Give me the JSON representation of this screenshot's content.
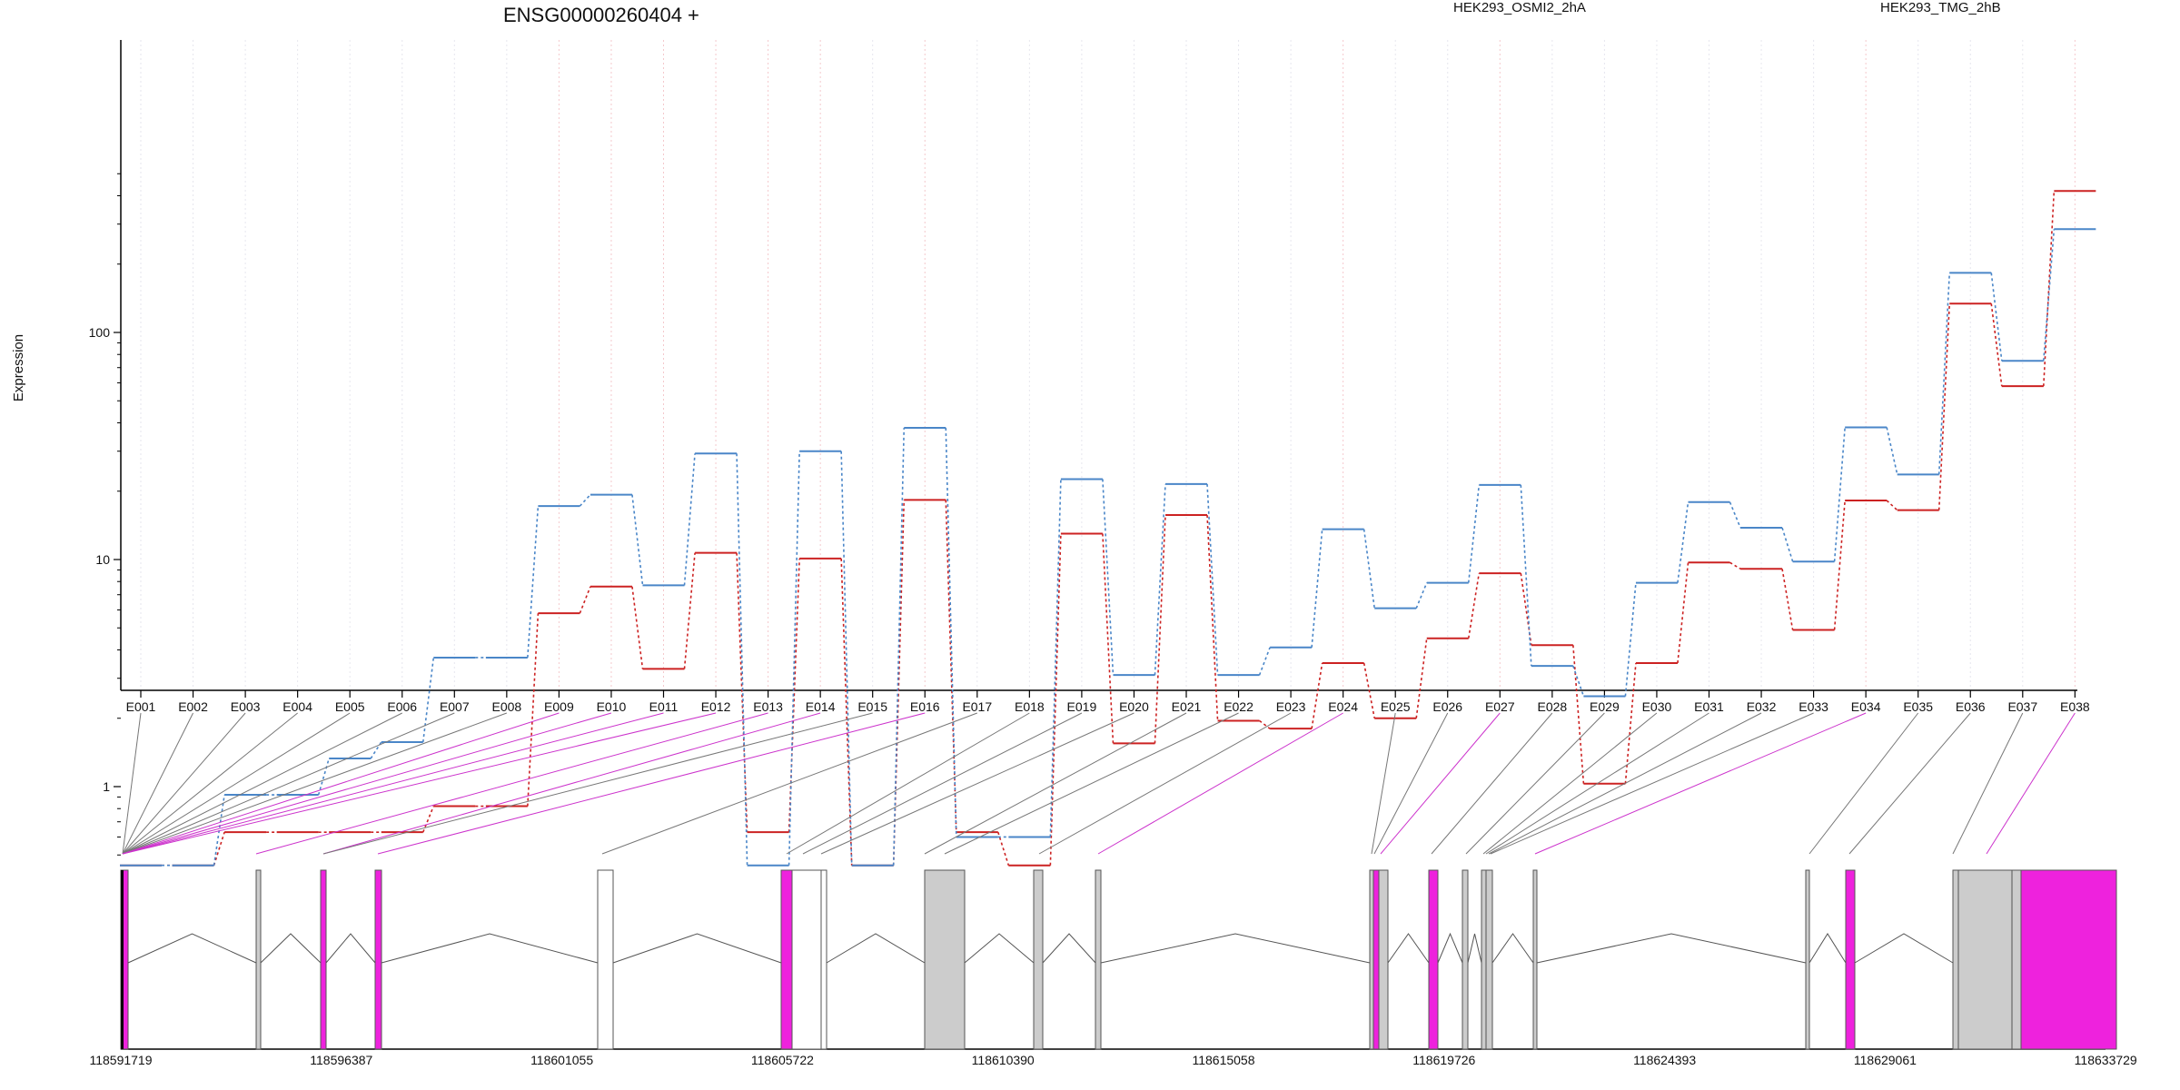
{
  "chart_data": {
    "type": "line",
    "title": "ENSG00000260404 +",
    "ylabel": "Expression",
    "xlabel": "",
    "y_scale": "log",
    "ylim": [
      0.45,
      550
    ],
    "y_ticks": [
      {
        "value": 1,
        "label": "1"
      },
      {
        "value": 10,
        "label": "10"
      },
      {
        "value": 100,
        "label": "100"
      }
    ],
    "grid": "vertical dotted lines at exon positions",
    "categories": [
      "E001",
      "E002",
      "E003",
      "E004",
      "E005",
      "E006",
      "E007",
      "E008",
      "E009",
      "E010",
      "E011",
      "E012",
      "E013",
      "E014",
      "E015",
      "E016",
      "E017",
      "E018",
      "E019",
      "E020",
      "E021",
      "E022",
      "E023",
      "E024",
      "E025",
      "E026",
      "E027",
      "E028",
      "E029",
      "E030",
      "E031",
      "E032",
      "E033",
      "E034",
      "E035",
      "E036",
      "E037",
      "E038"
    ],
    "series": [
      {
        "name": "HEK293_OSMI2_2hA",
        "color": "#cc2222",
        "values": [
          0.45,
          0.45,
          0.63,
          0.63,
          0.63,
          0.63,
          0.82,
          0.82,
          5.8,
          7.6,
          3.3,
          10.7,
          0.63,
          10.1,
          0.45,
          18.3,
          0.63,
          0.45,
          13.0,
          1.55,
          15.7,
          1.95,
          1.8,
          3.5,
          2.0,
          4.5,
          8.7,
          4.2,
          1.03,
          3.5,
          9.7,
          9.1,
          4.9,
          18.2,
          16.5,
          134,
          58,
          420
        ]
      },
      {
        "name": "HEK293_TMG_2hB",
        "color": "#4a86c8",
        "values": [
          0.45,
          0.45,
          0.92,
          0.92,
          1.33,
          1.57,
          3.7,
          3.7,
          17.2,
          19.3,
          7.7,
          29.3,
          0.45,
          30.0,
          0.45,
          38.0,
          0.6,
          0.6,
          22.6,
          3.1,
          21.5,
          3.1,
          4.1,
          13.6,
          6.1,
          7.9,
          21.3,
          3.4,
          2.5,
          7.9,
          17.9,
          13.8,
          9.8,
          38.2,
          23.7,
          183,
          75,
          285
        ]
      }
    ],
    "gene_model": {
      "coordinate_ticks": [
        "118591719",
        "118596387",
        "118601055",
        "118605722",
        "118610390",
        "118615058",
        "118619726",
        "118624393",
        "118629061",
        "118633729"
      ],
      "exon_ids": [
        "E001",
        "E002",
        "E003",
        "E004",
        "E005",
        "E006",
        "E007",
        "E008",
        "E009",
        "E010",
        "E011",
        "E012",
        "E013",
        "E014",
        "E015",
        "E016",
        "E017",
        "E018",
        "E019",
        "E020",
        "E021",
        "E022",
        "E023",
        "E024",
        "E025",
        "E026",
        "E027",
        "E028",
        "E029",
        "E030",
        "E031",
        "E032",
        "E033",
        "E034",
        "E035",
        "E036",
        "E037",
        "E038"
      ],
      "highlighted_exons": [
        "E009",
        "E010",
        "E011",
        "E012",
        "E013",
        "E014",
        "E016",
        "E024",
        "E027",
        "E034",
        "E038"
      ],
      "colors": {
        "highlight": "#ee22dd",
        "plain": "#cccccc",
        "empty": "#ffffff"
      }
    }
  }
}
